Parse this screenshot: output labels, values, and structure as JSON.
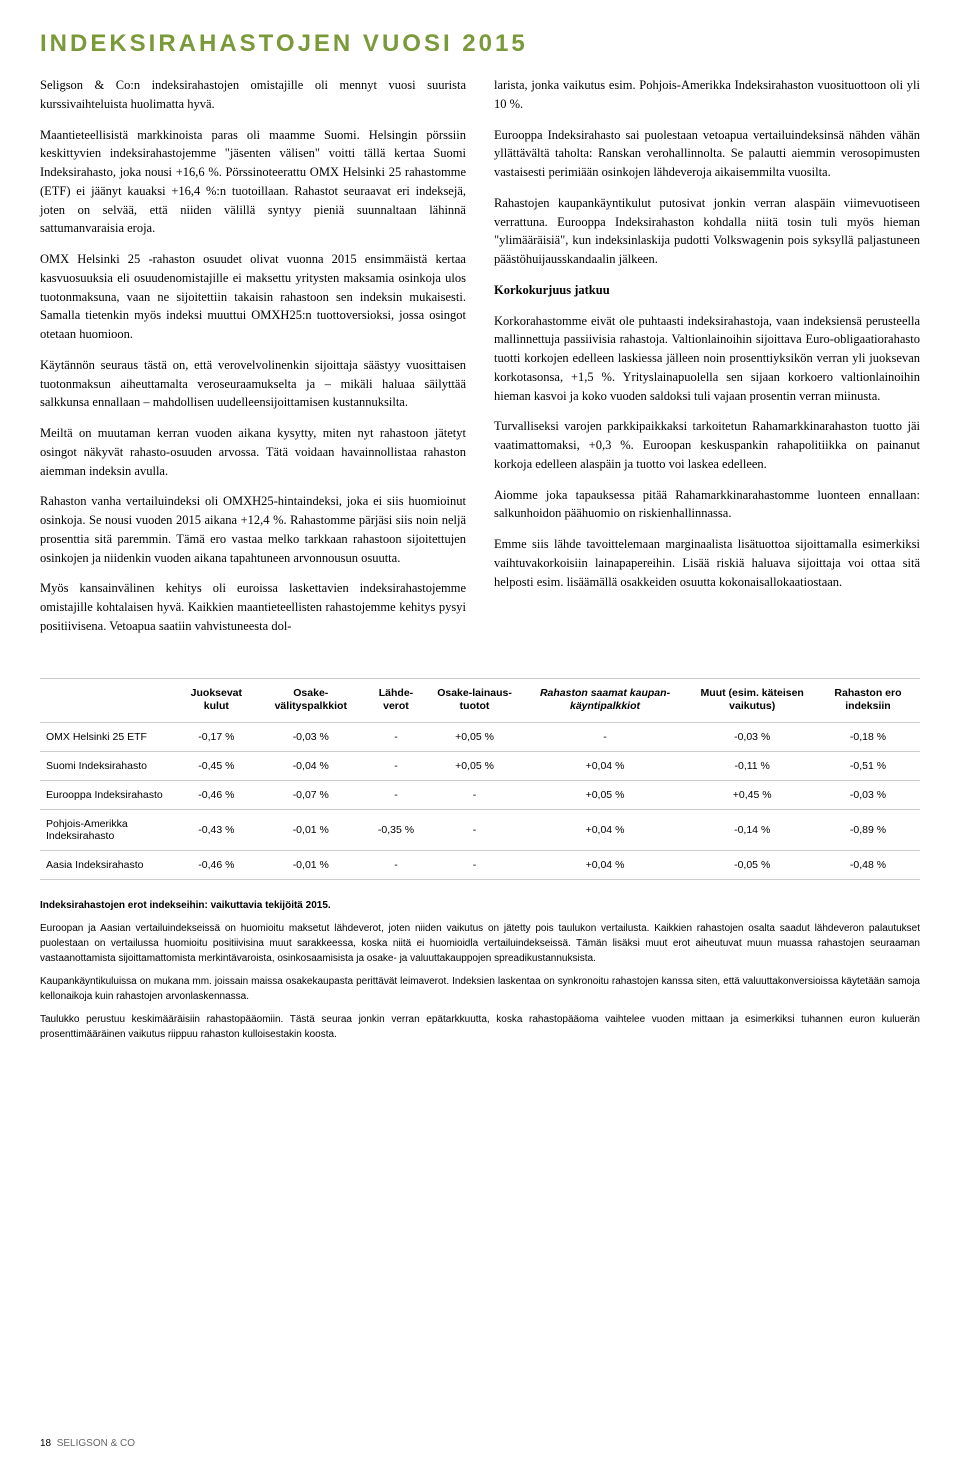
{
  "title": "INDEKSIRAHASTOJEN VUOSI 2015",
  "left": {
    "p1": "Seligson & Co:n indeksirahastojen omistajille oli mennyt vuosi suurista kurssivaihteluista huolimatta hyvä.",
    "p2": "Maantieteellisistä markkinoista paras oli maamme Suomi. Helsingin pörssiin keskittyvien indeksirahastojemme \"jäsenten välisen\" voitti tällä kertaa Suomi Indeksirahasto, joka nousi +16,6 %. Pörssinoteerattu OMX Helsinki 25 rahastomme (ETF) ei jäänyt kauaksi +16,4 %:n tuotoillaan. Rahastot seuraavat eri indeksejä, joten on selvää, että niiden välillä syntyy pieniä suunnaltaan lähinnä sattumanvaraisia eroja.",
    "p3": "OMX Helsinki 25 -rahaston osuudet olivat vuonna 2015 ensimmäistä kertaa kasvuosuuksia eli osuudenomistajille ei maksettu yritysten maksamia osinkoja ulos tuotonmaksuna, vaan ne sijoitettiin takaisin rahastoon sen indeksin mukaisesti. Samalla tietenkin myös indeksi muuttui OMXH25:n tuottoversioksi, jossa osingot otetaan huomioon.",
    "p4": "Käytännön seuraus tästä on, että verovelvolinenkin sijoittaja säästyy vuosittaisen tuotonmaksun aiheuttamalta veroseuraamukselta ja – mikäli haluaa säilyttää salkkunsa ennallaan – mahdollisen uudelleensijoittamisen kustannuksilta.",
    "p5": "Meiltä on muutaman kerran vuoden aikana kysytty, miten nyt rahastoon jätetyt osingot näkyvät rahasto-osuuden arvossa. Tätä voidaan havainnollistaa rahaston aiemman indeksin avulla.",
    "p6": "Rahaston vanha vertailuindeksi oli OMXH25-hintaindeksi, joka ei siis huomioinut osinkoja. Se nousi vuoden 2015 aikana +12,4 %. Rahastomme pärjäsi siis noin neljä prosenttia sitä paremmin. Tämä ero vastaa melko tarkkaan rahastoon sijoitettujen osinkojen ja niidenkin vuoden aikana tapahtuneen arvonnousun osuutta.",
    "p7": "Myös kansainvälinen kehitys oli euroissa laskettavien indeksirahastojemme omistajille kohtalaisen hyvä. Kaikkien maantieteellisten rahastojemme kehitys pysyi positiivisena. Vetoapua saatiin vahvistuneesta dol-"
  },
  "right": {
    "p1": "larista, jonka vaikutus esim. Pohjois-Amerikka Indeksirahaston vuosituottoon oli yli 10 %.",
    "p2": "Eurooppa Indeksirahasto sai puolestaan vetoapua vertailuindeksinsä nähden vähän yllättävältä taholta: Ranskan verohallinnolta. Se palautti aiemmin verosopimusten vastaisesti perimiään osinkojen lähdeveroja aikaisemmilta vuosilta.",
    "p3": "Rahastojen kaupankäyntikulut putosivat jonkin verran alaspäin viimevuotiseen verrattuna. Eurooppa Indeksirahaston kohdalla niitä tosin tuli myös hieman \"ylimääräisiä\", kun indeksinlaskija pudotti Volkswagenin pois syksyllä paljastuneen päästöhuijausskandaalin jälkeen.",
    "subhead": "Korkokurjuus jatkuu",
    "p4": "Korkorahastomme eivät ole puhtaasti indeksirahastoja, vaan indeksiensä perusteella mallinnettuja passiivisia rahastoja. Valtionlainoihin sijoittava Euro-obligaatiorahasto tuotti korkojen edelleen laskiessa jälleen noin prosenttiyksikön verran yli juoksevan korkotasonsa, +1,5 %. Yrityslainapuolella sen sijaan korkoero valtionlainoihin hieman kasvoi ja koko vuoden saldoksi tuli vajaan prosentin verran miinusta.",
    "p5": "Turvalliseksi varojen parkkipaikkaksi tarkoitetun Rahamarkkinarahaston tuotto jäi vaatimattomaksi, +0,3 %. Euroopan keskuspankin rahapolitiikka on painanut korkoja edelleen alaspäin ja tuotto voi laskea edelleen.",
    "p6": "Aiomme joka tapauksessa pitää Rahamarkkinarahastomme luonteen ennallaan: salkunhoidon päähuomio on riskienhallinnassa.",
    "p7": "Emme siis lähde tavoittelemaan marginaalista lisätuottoa sijoittamalla esimerkiksi vaihtuvakorkoisiin lainapapereihin. Lisää riskiä haluava sijoittaja voi ottaa sitä helposti esim. lisäämällä osakkeiden osuutta kokonaisallokaatiostaan."
  },
  "table": {
    "headers": [
      "",
      "Juoksevat kulut",
      "Osake-välityspalkkiot",
      "Lähde-verot",
      "Osake-lainaus-tuotot",
      "Rahaston saamat kaupan-käyntipalkkiot",
      "Muut (esim. käteisen vaikutus)",
      "Rahaston ero indeksiin"
    ],
    "rows": [
      [
        "OMX Helsinki 25 ETF",
        "-0,17 %",
        "-0,03 %",
        "-",
        "+0,05 %",
        "-",
        "-0,03 %",
        "-0,18 %"
      ],
      [
        "Suomi Indeksirahasto",
        "-0,45 %",
        "-0,04 %",
        "-",
        "+0,05 %",
        "+0,04 %",
        "-0,11 %",
        "-0,51 %"
      ],
      [
        "Eurooppa Indeksirahasto",
        "-0,46 %",
        "-0,07 %",
        "-",
        "-",
        "+0,05 %",
        "+0,45 %",
        "-0,03 %"
      ],
      [
        "Pohjois-Amerikka Indeksirahasto",
        "-0,43 %",
        "-0,01 %",
        "-0,35 %",
        "-",
        "+0,04 %",
        "-0,14 %",
        "-0,89 %"
      ],
      [
        "Aasia Indeksirahasto",
        "-0,46 %",
        "-0,01 %",
        "-",
        "-",
        "+0,04 %",
        "-0,05 %",
        "-0,48 %"
      ]
    ]
  },
  "footnotes": {
    "head": "Indeksirahastojen erot indekseihin: vaikuttavia tekijöitä 2015.",
    "p1": "Euroopan ja Aasian vertailuindekseissä on huomioitu maksetut lähdeverot, joten niiden vaikutus on jätetty pois taulukon vertailusta. Kaikkien rahastojen osalta saadut lähdeveron palautukset puolestaan on vertailussa huomioitu positiivisina muut sarakkeessa, koska niitä ei huomioidla vertailuindekseissä. Tämän lisäksi muut erot aiheutuvat muun muassa rahastojen seuraaman vastaanottamista sijoittamattomista merkintävaroista, osinkosaamisista ja osake- ja valuuttakauppojen spreadikustannuksista.",
    "p2": "Kaupankäyntikuluissa on mukana mm. joissain maissa osakekaupasta perittävät leimaverot. Indeksien laskentaa on synkronoitu rahastojen kanssa siten, että valuuttakonversioissa käytetään samoja kellonaikoja kuin rahastojen arvonlaskennassa.",
    "p3": "Taulukko perustuu keskimääräisiin rahastopääomiin. Tästä seuraa jonkin verran epätarkkuutta, koska rahastopääoma vaihtelee vuoden mittaan ja esimerkiksi tuhannen euron kuluerän prosenttimääräinen vaikutus riippuu rahaston kulloisestakin koosta."
  },
  "footer": {
    "page": "18",
    "brand": "SELIGSON & CO"
  }
}
